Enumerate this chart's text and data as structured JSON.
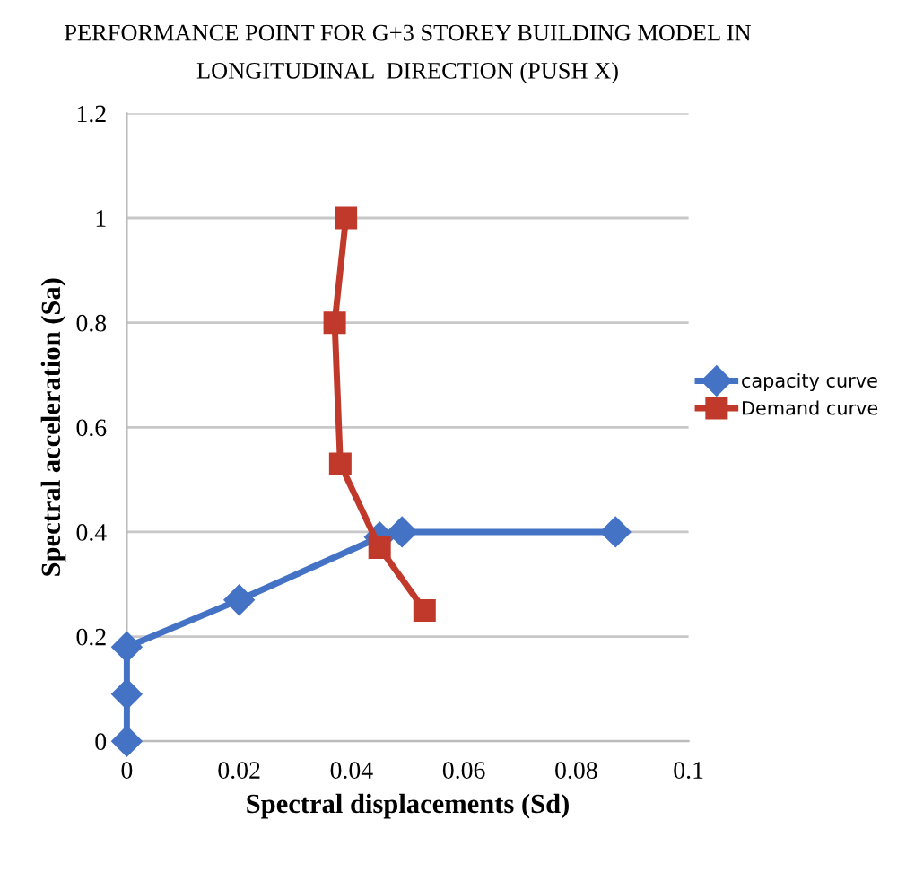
{
  "chart_data": {
    "type": "line",
    "title": "PERFORMANCE POINT FOR G+3 STOREY BUILDING MODEL IN\nLONGITUDINAL  DIRECTION (PUSH X)",
    "xlabel": "Spectral displacements (Sd)",
    "ylabel": "Spectral acceleration (Sa)",
    "series": [
      {
        "name": "capacity curve",
        "color": "#4472c4",
        "marker": "diamond",
        "x": [
          0,
          0,
          0,
          0.02,
          0.045,
          0.049,
          0.087
        ],
        "values": [
          0,
          0.09,
          0.18,
          0.27,
          0.39,
          0.4,
          0.4
        ]
      },
      {
        "name": "Demand curve",
        "color": "#c0392b",
        "marker": "square",
        "x": [
          0.039,
          0.037,
          0.038,
          0.045,
          0.053
        ],
        "values": [
          1.0,
          0.8,
          0.53,
          0.37,
          0.25
        ]
      }
    ],
    "xlim": [
      0,
      0.1
    ],
    "xticks": [
      0,
      0.02,
      0.04,
      0.06,
      0.08,
      0.1
    ],
    "ylim": [
      0,
      1.2
    ],
    "yticks": [
      0,
      0.2,
      0.4,
      0.6,
      0.8,
      1,
      1.2
    ],
    "grid": "y",
    "legend": "right"
  }
}
